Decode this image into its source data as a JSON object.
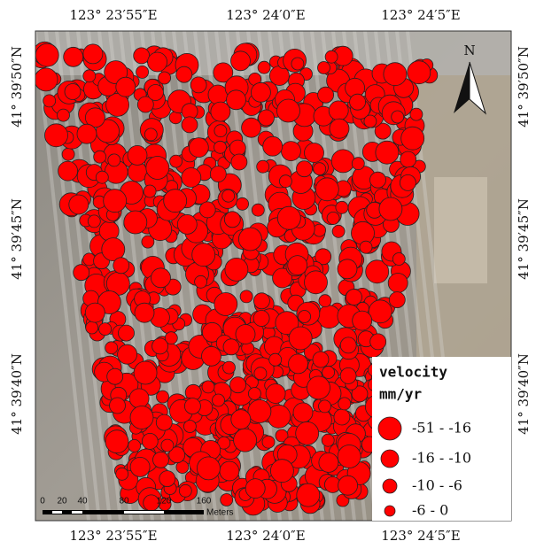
{
  "map": {
    "top_labels": [
      "123° 23′55″E",
      "123° 24′0″E",
      "123° 24′5″E"
    ],
    "bottom_labels": [
      "123° 23′55″E",
      "123° 24′0″E",
      "123° 24′5″E"
    ],
    "left_labels": [
      "41° 39′50″N",
      "41° 39′45″N",
      "41° 39′40″N"
    ],
    "right_labels": [
      "41° 39′50″N",
      "41° 39′45″N",
      "41° 39′40″N"
    ],
    "north": "N",
    "legend": {
      "title": "velocity",
      "unit": "mm/yr",
      "items": [
        "-51  -  -16",
        "-16  -  -10",
        "-10  -  -6",
        "-6  -  0"
      ]
    },
    "scale_bar": {
      "ticks": [
        "0",
        "20",
        "40",
        "80",
        "120",
        "160"
      ],
      "unit": "Meters"
    }
  }
}
